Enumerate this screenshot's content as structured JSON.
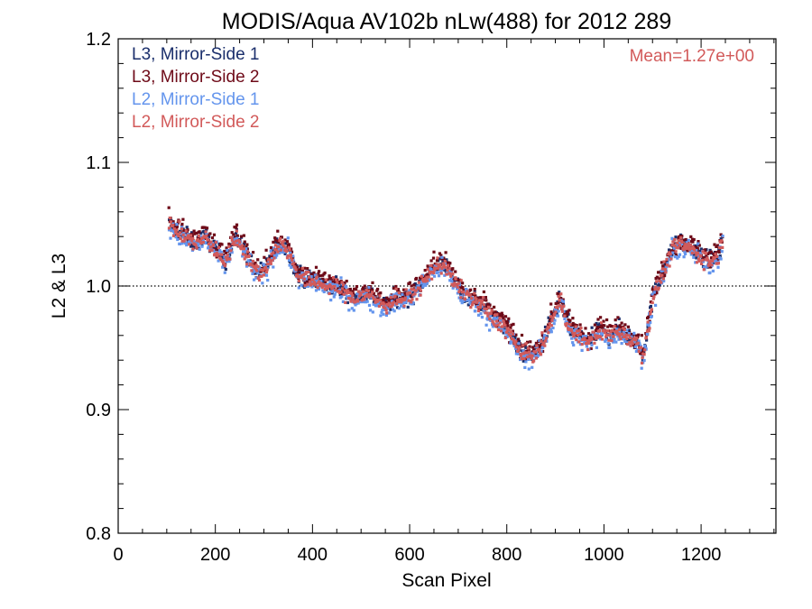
{
  "chart_data": {
    "type": "scatter",
    "title": "MODIS/Aqua AV102b nLw(488) for 2012 289",
    "xlabel": "Scan Pixel",
    "ylabel": "L2 & L3",
    "xlim": [
      0,
      1354
    ],
    "ylim": [
      0.8,
      1.2
    ],
    "x_ticks": [
      0,
      200,
      400,
      600,
      800,
      1000,
      1200
    ],
    "x_tick_labels": [
      "0",
      "200",
      "400",
      "600",
      "800",
      "1000",
      "1200"
    ],
    "y_ticks": [
      0.8,
      0.9,
      1.0,
      1.1,
      1.2
    ],
    "y_tick_labels": [
      "0.8",
      "0.9",
      "1.0",
      "1.1",
      "1.2"
    ],
    "reference_line": {
      "y": 1.0,
      "style": "dotted"
    },
    "annotation": {
      "text": "Mean=1.27e+00",
      "color": "#d25a5a",
      "placement": "top-right"
    },
    "legend_placement": "top-left",
    "grid": false,
    "trend": {
      "x": [
        105,
        120,
        140,
        160,
        180,
        200,
        220,
        240,
        260,
        280,
        295,
        310,
        330,
        350,
        370,
        390,
        410,
        430,
        450,
        470,
        490,
        510,
        530,
        550,
        570,
        590,
        610,
        630,
        650,
        670,
        690,
        710,
        730,
        750,
        770,
        790,
        810,
        830,
        850,
        870,
        890,
        910,
        930,
        950,
        970,
        990,
        1010,
        1030,
        1050,
        1070,
        1080,
        1090,
        1100,
        1120,
        1140,
        1160,
        1180,
        1200,
        1220,
        1235,
        1245
      ],
      "y": [
        1.05,
        1.045,
        1.04,
        1.035,
        1.04,
        1.03,
        1.02,
        1.04,
        1.03,
        1.015,
        1.01,
        1.02,
        1.035,
        1.03,
        1.01,
        1.005,
        1.005,
        1.0,
        1.0,
        0.995,
        0.99,
        0.995,
        0.99,
        0.985,
        0.99,
        0.99,
        0.995,
        1.005,
        1.015,
        1.02,
        1.005,
        0.995,
        0.99,
        0.985,
        0.975,
        0.97,
        0.96,
        0.945,
        0.945,
        0.95,
        0.97,
        0.99,
        0.965,
        0.96,
        0.955,
        0.965,
        0.96,
        0.965,
        0.96,
        0.955,
        0.945,
        0.965,
        0.99,
        1.01,
        1.03,
        1.035,
        1.03,
        1.025,
        1.02,
        1.025,
        1.04
      ]
    },
    "series": [
      {
        "name": "L3, Mirror-Side 1",
        "color": "#1a2e6b",
        "offset": 0.0,
        "spread": 0.01
      },
      {
        "name": "L3, Mirror-Side 2",
        "color": "#6e0a18",
        "offset": 0.003,
        "spread": 0.012
      },
      {
        "name": "L2, Mirror-Side 1",
        "color": "#6495ed",
        "offset": -0.003,
        "spread": 0.012
      },
      {
        "name": "L2, Mirror-Side 2",
        "color": "#d25a5a",
        "offset": -0.001,
        "spread": 0.01
      }
    ]
  }
}
